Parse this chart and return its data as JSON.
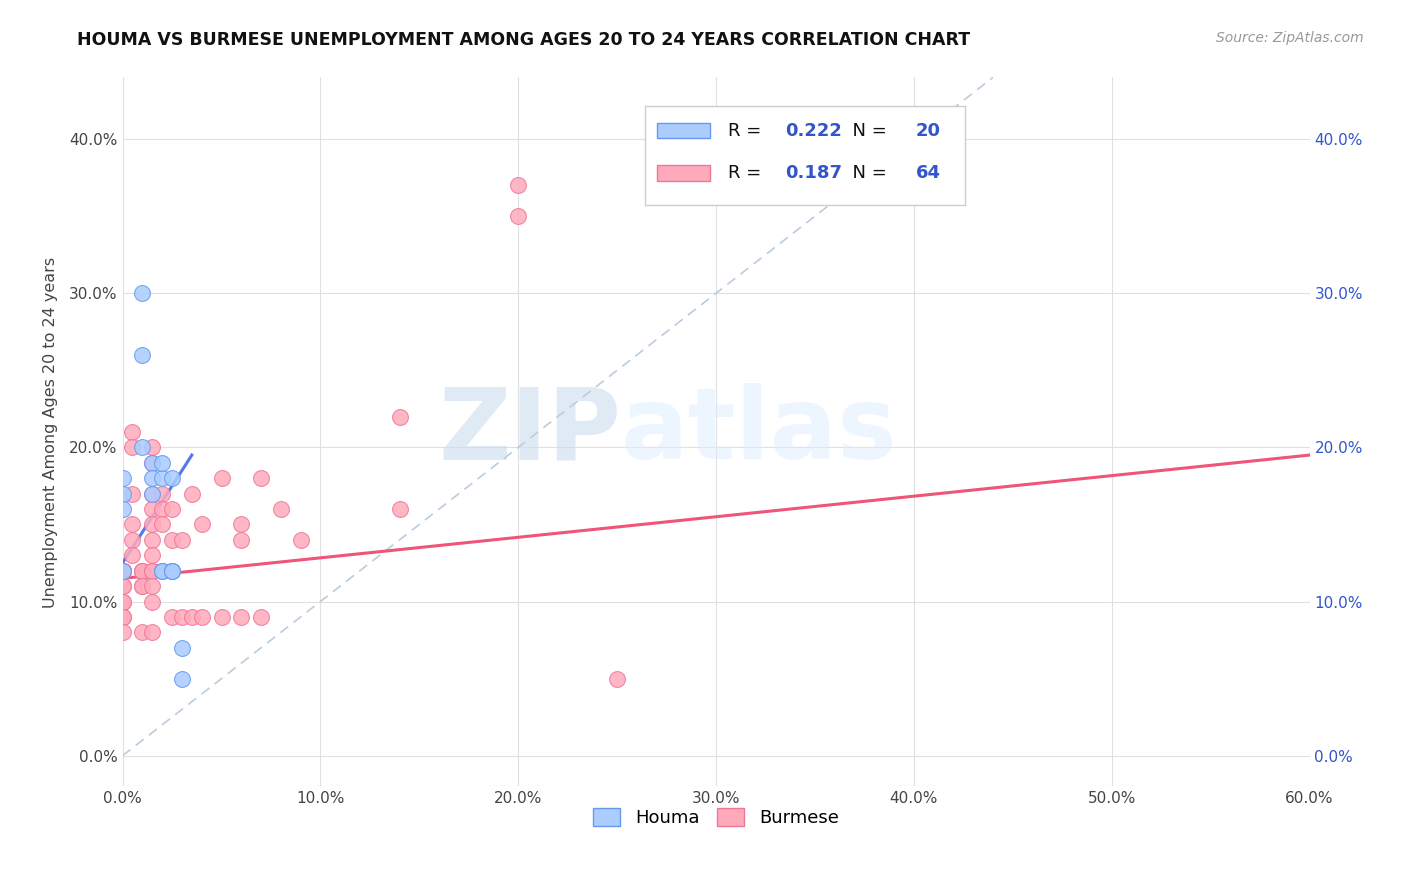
{
  "title": "HOUMA VS BURMESE UNEMPLOYMENT AMONG AGES 20 TO 24 YEARS CORRELATION CHART",
  "source": "Source: ZipAtlas.com",
  "ylabel": "Unemployment Among Ages 20 to 24 years",
  "xlim": [
    0.0,
    0.6
  ],
  "ylim": [
    -0.02,
    0.44
  ],
  "yticks": [
    0.0,
    0.1,
    0.2,
    0.3,
    0.4
  ],
  "ytick_labels": [
    "0.0%",
    "10.0%",
    "20.0%",
    "30.0%",
    "40.0%"
  ],
  "xticks": [
    0.0,
    0.1,
    0.2,
    0.3,
    0.4,
    0.5,
    0.6
  ],
  "xtick_labels": [
    "0.0%",
    "10.0%",
    "20.0%",
    "30.0%",
    "40.0%",
    "50.0%",
    "60.0%"
  ],
  "houma_color": "#aaccff",
  "burmese_color": "#ffaabb",
  "houma_edge_color": "#6699ee",
  "burmese_edge_color": "#ee7799",
  "houma_line_color": "#5577ee",
  "burmese_line_color": "#ee5577",
  "diagonal_color": "#bbccdd",
  "houma_R": 0.222,
  "houma_N": 20,
  "burmese_R": 0.187,
  "burmese_N": 64,
  "watermark_zip": "ZIP",
  "watermark_atlas": "atlas",
  "houma_x": [
    0.0,
    0.01,
    0.01,
    0.01,
    0.015,
    0.015,
    0.015,
    0.02,
    0.02,
    0.02,
    0.02,
    0.025,
    0.025,
    0.025,
    0.025,
    0.03,
    0.03,
    0.0,
    0.0,
    0.0
  ],
  "houma_y": [
    0.12,
    0.3,
    0.26,
    0.2,
    0.19,
    0.18,
    0.17,
    0.12,
    0.12,
    0.18,
    0.19,
    0.12,
    0.18,
    0.12,
    0.12,
    0.07,
    0.05,
    0.18,
    0.17,
    0.16
  ],
  "burmese_x": [
    0.0,
    0.0,
    0.0,
    0.0,
    0.0,
    0.0,
    0.0,
    0.0,
    0.0,
    0.0,
    0.0,
    0.0,
    0.005,
    0.005,
    0.005,
    0.005,
    0.005,
    0.005,
    0.01,
    0.01,
    0.01,
    0.01,
    0.01,
    0.01,
    0.015,
    0.015,
    0.015,
    0.015,
    0.015,
    0.015,
    0.015,
    0.015,
    0.015,
    0.015,
    0.015,
    0.015,
    0.02,
    0.02,
    0.02,
    0.02,
    0.025,
    0.025,
    0.025,
    0.025,
    0.03,
    0.03,
    0.035,
    0.035,
    0.04,
    0.04,
    0.05,
    0.05,
    0.06,
    0.06,
    0.06,
    0.07,
    0.07,
    0.08,
    0.09,
    0.14,
    0.14,
    0.2,
    0.2,
    0.25
  ],
  "burmese_y": [
    0.12,
    0.12,
    0.12,
    0.12,
    0.12,
    0.11,
    0.11,
    0.1,
    0.1,
    0.09,
    0.09,
    0.08,
    0.21,
    0.2,
    0.17,
    0.15,
    0.14,
    0.13,
    0.12,
    0.12,
    0.12,
    0.11,
    0.11,
    0.08,
    0.2,
    0.19,
    0.17,
    0.16,
    0.15,
    0.14,
    0.13,
    0.12,
    0.12,
    0.11,
    0.1,
    0.08,
    0.17,
    0.16,
    0.15,
    0.12,
    0.16,
    0.14,
    0.12,
    0.09,
    0.14,
    0.09,
    0.17,
    0.09,
    0.15,
    0.09,
    0.18,
    0.09,
    0.15,
    0.14,
    0.09,
    0.18,
    0.09,
    0.16,
    0.14,
    0.22,
    0.16,
    0.37,
    0.35,
    0.05
  ],
  "houma_trend_x": [
    0.0,
    0.035
  ],
  "houma_trend_y": [
    0.125,
    0.195
  ],
  "burmese_trend_x": [
    0.0,
    0.6
  ],
  "burmese_trend_y": [
    0.115,
    0.195
  ],
  "background_color": "#ffffff",
  "grid_color": "#e0e0e0",
  "legend_text_color": "#111111",
  "legend_value_color": "#3355cc",
  "right_axis_color": "#3355cc"
}
